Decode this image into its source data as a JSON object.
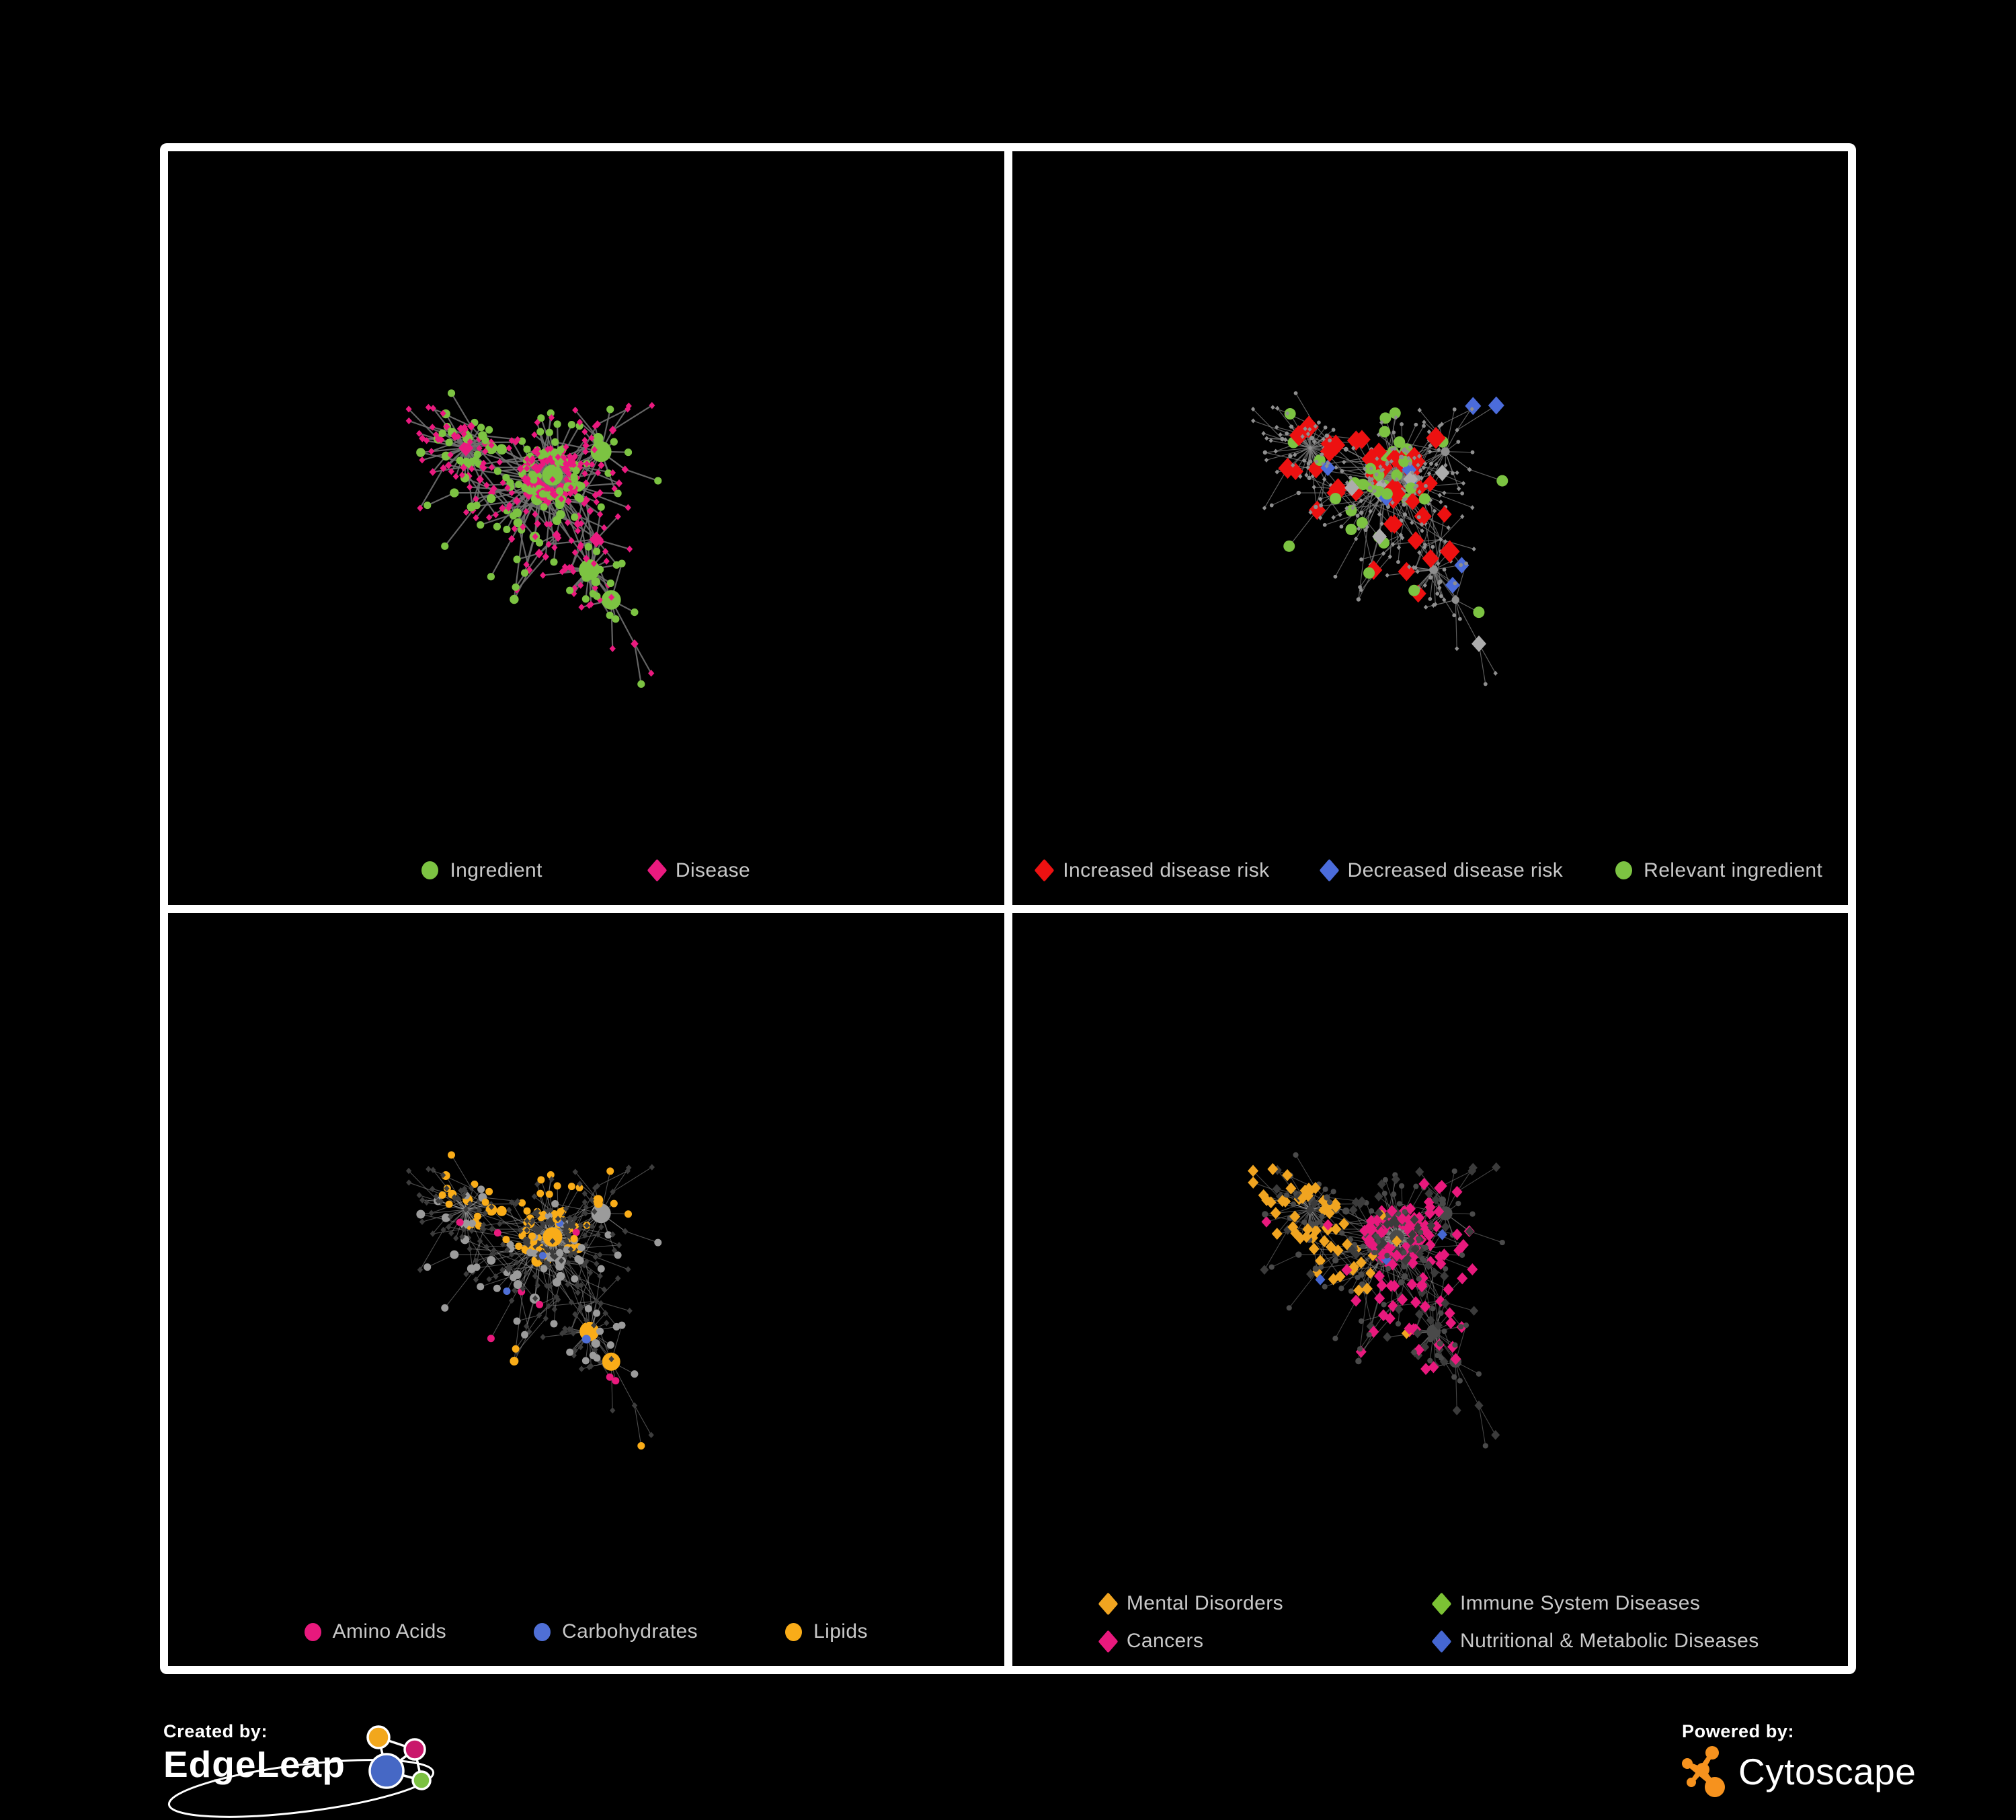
{
  "canvas": {
    "background": "#000000",
    "frame_color": "#ffffff",
    "legend_text_color": "#c8c8c8"
  },
  "panels": [
    {
      "id": "ingredient-disease",
      "legend": [
        {
          "label": "Ingredient",
          "shape": "circle",
          "color": "#7cc342"
        },
        {
          "label": "Disease",
          "shape": "diamond",
          "color": "#ea1a7f"
        }
      ],
      "network": {
        "mode": "base",
        "edge_color": "#6f6f6f",
        "edge_width": 2.2,
        "edge_opacity": 0.9,
        "circle_color": "#7cc342",
        "diamond_color": "#ea1a7f"
      }
    },
    {
      "id": "disease-risk",
      "legend": [
        {
          "label": "Increased disease risk",
          "shape": "diamond",
          "color": "#ed1111"
        },
        {
          "label": "Decreased disease risk",
          "shape": "diamond",
          "color": "#4b6cdb"
        },
        {
          "label": "Relevant ingredient",
          "shape": "circle",
          "color": "#7cc342"
        }
      ],
      "network": {
        "mode": "risk",
        "edge_color": "#7c7c7c",
        "edge_width": 1.2,
        "edge_opacity": 0.75,
        "base_color": "#8f8f8f",
        "increased_color": "#ed1111",
        "decreased_color": "#4b6cdb",
        "other_color": "#acacac",
        "ingredient_color": "#7cc342"
      }
    },
    {
      "id": "nutrient-classes",
      "legend": [
        {
          "label": "Amino Acids",
          "shape": "circle",
          "color": "#e8197d"
        },
        {
          "label": "Carbohydrates",
          "shape": "circle",
          "color": "#4f6fd6"
        },
        {
          "label": "Lipids",
          "shape": "circle",
          "color": "#f9ac18"
        }
      ],
      "network": {
        "mode": "nutrient",
        "edge_color": "#9c9c9c",
        "edge_width": 1.1,
        "edge_opacity": 0.5,
        "diamond_color": "#3d3d3d",
        "circle_default": "#9b9b9b",
        "amino_color": "#e8197d",
        "carb_color": "#4f6fd6",
        "lipid_color": "#f9ac18"
      }
    },
    {
      "id": "disease-categories",
      "legend": [
        {
          "label": "Mental Disorders",
          "shape": "diamond",
          "color": "#f0a420"
        },
        {
          "label": "Immune System Diseases",
          "shape": "diamond",
          "color": "#7cc234"
        },
        {
          "label": "Cancers",
          "shape": "diamond",
          "color": "#e8197d"
        },
        {
          "label": "Nutritional & Metabolic Diseases",
          "shape": "diamond",
          "color": "#4567d2"
        }
      ],
      "network": {
        "mode": "category",
        "edge_color": "#9a9a9a",
        "edge_width": 1.1,
        "edge_opacity": 0.45,
        "circle_color": "#4a4a4a",
        "diamond_default": "#3b3b3b",
        "mental_color": "#f0a420",
        "immune_color": "#7cc234",
        "cancer_color": "#e8197d",
        "nutritional_color": "#4567d2"
      }
    }
  ],
  "footer": {
    "created_by": {
      "label": "Created by:",
      "brand": "EdgeLeap"
    },
    "powered_by": {
      "label": "Powered by:",
      "brand": "Cytoscape"
    },
    "edgeleap_colors": {
      "orange": "#f2a71c",
      "magenta": "#c9176b",
      "blue": "#4668c5",
      "green": "#7cc142"
    },
    "cytoscape_color": "#f6921e"
  }
}
